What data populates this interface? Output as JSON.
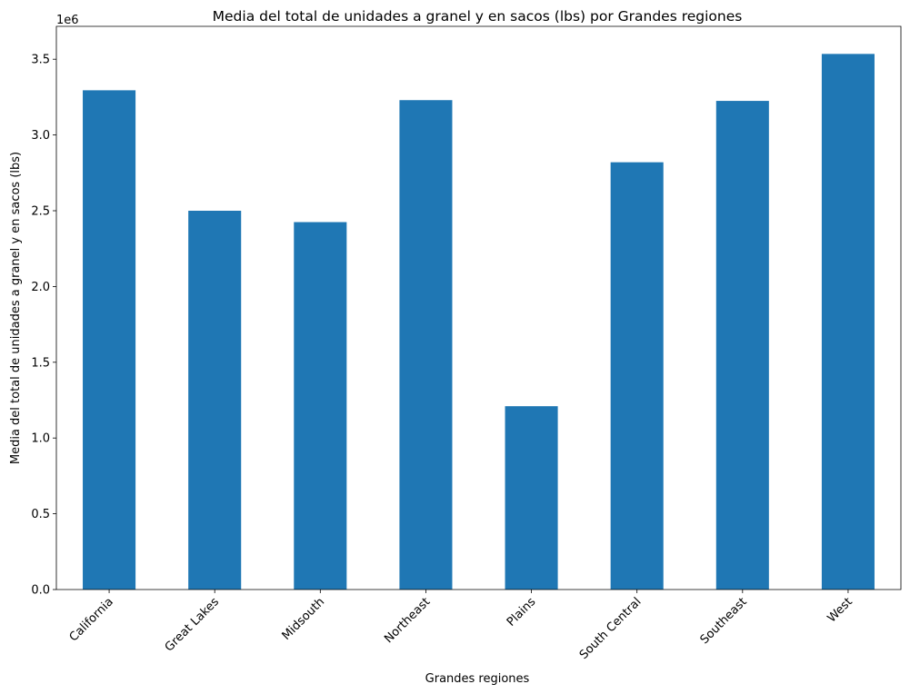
{
  "chart_data": {
    "type": "bar",
    "title": "Media del total de unidades a granel y en sacos (lbs) por Grandes regiones",
    "xlabel": "Grandes regiones",
    "ylabel": "Media del total de unidades a granel y en sacos (lbs)",
    "y_offset_label": "1e6",
    "y_multiplier": 1000000,
    "categories": [
      "California",
      "Great Lakes",
      "Midsouth",
      "Northeast",
      "Plains",
      "South Central",
      "Southeast",
      "West"
    ],
    "values": [
      3295000,
      2500000,
      2425000,
      3230000,
      1210000,
      2820000,
      3225000,
      3535000
    ],
    "ylim": [
      0,
      3717000
    ],
    "yticks": [
      0,
      0.5,
      1.0,
      1.5,
      2.0,
      2.5,
      3.0,
      3.5
    ],
    "ytick_labels": [
      "0.0",
      "0.5",
      "1.0",
      "1.5",
      "2.0",
      "2.5",
      "3.0",
      "3.5"
    ],
    "bar_color": "#1f77b4",
    "grid": false,
    "legend": "none"
  }
}
